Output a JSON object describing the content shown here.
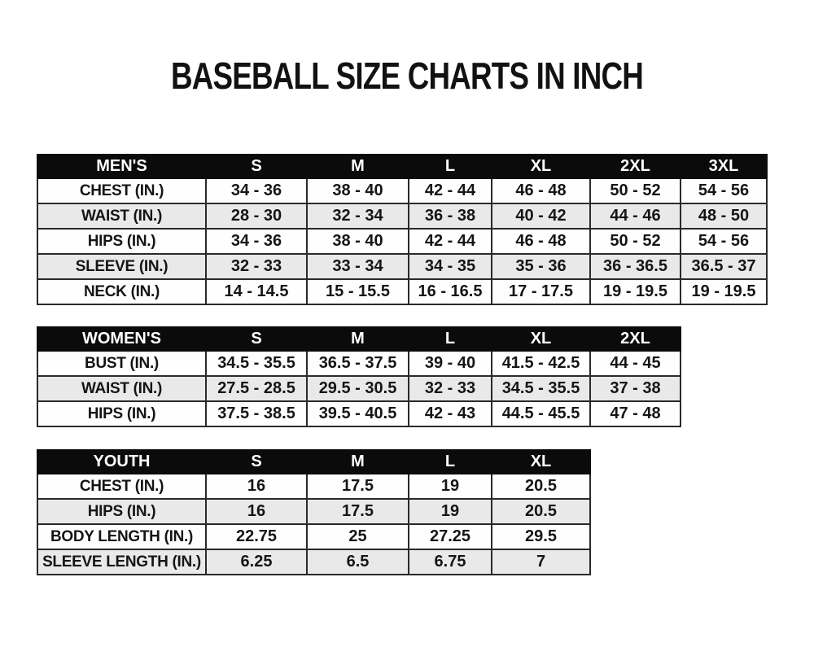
{
  "page": {
    "title": "BASEBALL SIZE CHARTS IN INCH"
  },
  "tables": [
    {
      "name": "mens",
      "header": [
        "MEN'S",
        "S",
        "M",
        "L",
        "XL",
        "2XL",
        "3XL"
      ],
      "rows": [
        [
          "CHEST (IN.)",
          "34 - 36",
          "38 - 40",
          "42 - 44",
          "46 - 48",
          "50 - 52",
          "54 - 56"
        ],
        [
          "WAIST (IN.)",
          "28 - 30",
          "32 - 34",
          "36 - 38",
          "40 - 42",
          "44 - 46",
          "48 - 50"
        ],
        [
          "HIPS (IN.)",
          "34 - 36",
          "38 - 40",
          "42 - 44",
          "46 - 48",
          "50 - 52",
          "54 - 56"
        ],
        [
          "SLEEVE (IN.)",
          "32 - 33",
          "33 - 34",
          "34 - 35",
          "35 - 36",
          "36 - 36.5",
          "36.5 - 37"
        ],
        [
          "NECK (IN.)",
          "14 - 14.5",
          "15 - 15.5",
          "16 - 16.5",
          "17 - 17.5",
          "19 - 19.5",
          "19 - 19.5"
        ]
      ]
    },
    {
      "name": "womens",
      "header": [
        "WOMEN'S",
        "S",
        "M",
        "L",
        "XL",
        "2XL"
      ],
      "rows": [
        [
          "BUST (IN.)",
          "34.5 - 35.5",
          "36.5 - 37.5",
          "39 - 40",
          "41.5 - 42.5",
          "44 - 45"
        ],
        [
          "WAIST (IN.)",
          "27.5 - 28.5",
          "29.5 - 30.5",
          "32 - 33",
          "34.5 - 35.5",
          "37 - 38"
        ],
        [
          "HIPS (IN.)",
          "37.5 - 38.5",
          "39.5 - 40.5",
          "42 - 43",
          "44.5 - 45.5",
          "47 - 48"
        ]
      ]
    },
    {
      "name": "youth",
      "header": [
        "YOUTH",
        "S",
        "M",
        "L",
        "XL"
      ],
      "rows": [
        [
          "CHEST (IN.)",
          "16",
          "17.5",
          "19",
          "20.5"
        ],
        [
          "HIPS (IN.)",
          "16",
          "17.5",
          "19",
          "20.5"
        ],
        [
          "BODY LENGTH (IN.)",
          "22.75",
          "25",
          "27.25",
          "29.5"
        ],
        [
          "SLEEVE LENGTH (IN.)",
          "6.25",
          "6.5",
          "6.75",
          "7"
        ]
      ]
    }
  ]
}
